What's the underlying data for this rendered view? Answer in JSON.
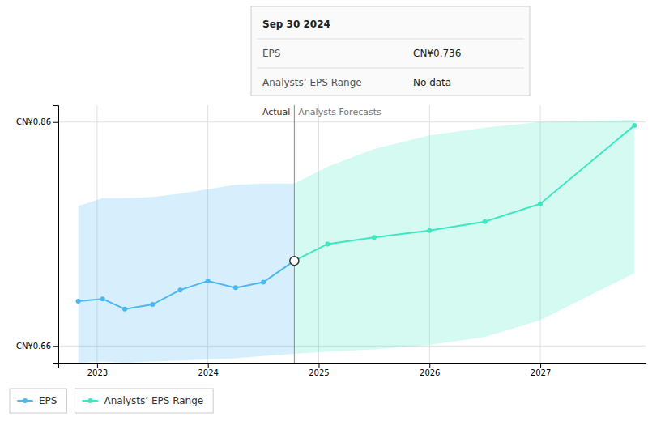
{
  "chart_data": {
    "type": "line",
    "xlim": [
      2022.65,
      2027.95
    ],
    "ylim": [
      0.645,
      0.875
    ],
    "xticks": [
      2023,
      2024,
      2025,
      2026,
      2027
    ],
    "yticks": [
      {
        "value": 0.66,
        "label": "CN¥0.66"
      },
      {
        "value": 0.86,
        "label": "CN¥0.86"
      }
    ],
    "grid": true,
    "divider_x": 2024.78,
    "annotations": [
      "Actual",
      "Analysts Forecasts"
    ],
    "series": [
      {
        "name": "EPS",
        "color": "#4ab8f0",
        "marker": "circle",
        "x": [
          2022.83,
          2023.05,
          2023.25,
          2023.5,
          2023.75,
          2024.0,
          2024.25,
          2024.5,
          2024.78
        ],
        "values": [
          0.7,
          0.702,
          0.693,
          0.697,
          0.71,
          0.718,
          0.712,
          0.717,
          0.736
        ],
        "range_top": [
          0.785,
          0.792,
          0.792,
          0.793,
          0.796,
          0.8,
          0.804,
          0.805,
          0.805
        ],
        "range_bottom": [
          0.645,
          0.646,
          0.645,
          0.646,
          0.647,
          0.648,
          0.649,
          0.651,
          0.653
        ]
      },
      {
        "name": "Analysts’ EPS Range",
        "color": "#3de8c0",
        "marker": "circle",
        "x": [
          2024.78,
          2025.08,
          2025.5,
          2026.0,
          2026.5,
          2027.0,
          2027.85
        ],
        "values": [
          0.736,
          0.751,
          0.757,
          0.763,
          0.771,
          0.787,
          0.857
        ],
        "range_top": [
          0.805,
          0.82,
          0.836,
          0.848,
          0.855,
          0.86,
          0.862
        ],
        "range_bottom": [
          0.653,
          0.655,
          0.657,
          0.661,
          0.668,
          0.683,
          0.725
        ]
      }
    ],
    "tooltip": {
      "title": "Sep 30 2024",
      "rows": [
        {
          "label": "EPS",
          "value": "CN¥0.736"
        },
        {
          "label": "Analysts’ EPS Range",
          "value": "No data"
        }
      ]
    }
  }
}
